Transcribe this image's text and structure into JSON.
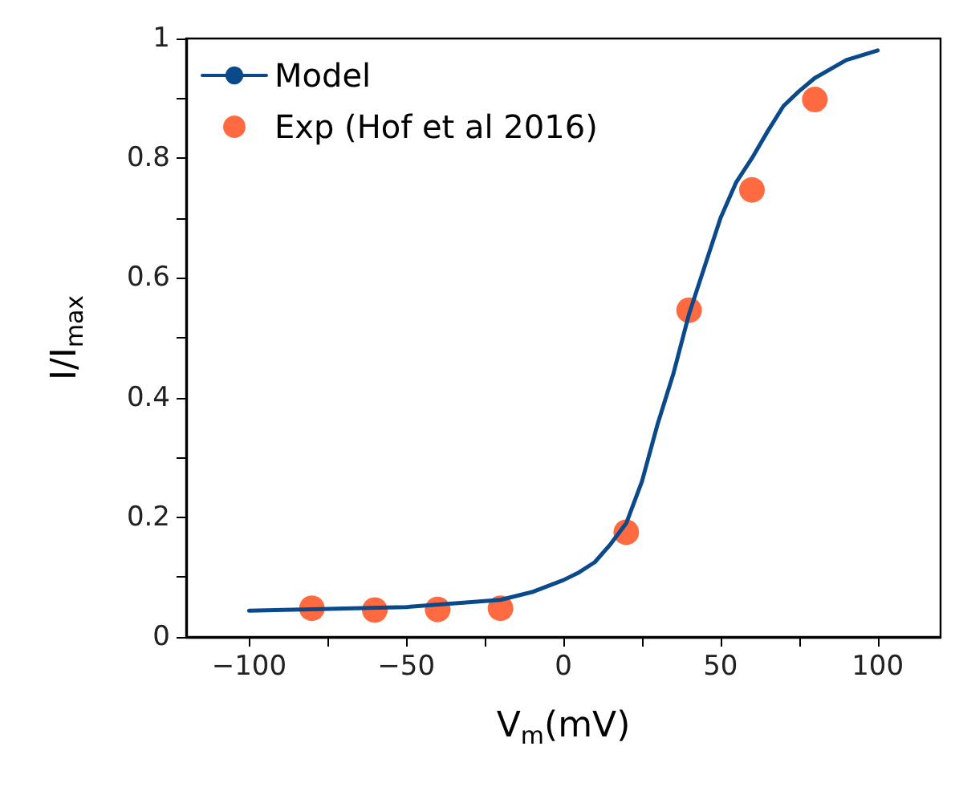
{
  "chart_data": {
    "type": "line",
    "xlabel": "V$_{m}$(mV)",
    "ylabel": "I/I$_{max}$",
    "xlim": [
      -120,
      120
    ],
    "xticks": [
      {
        "value": -100,
        "label": "−100"
      },
      {
        "value": -75,
        "label": null
      },
      {
        "value": -50,
        "label": "−50"
      },
      {
        "value": -25,
        "label": null
      },
      0,
      {
        "value": 25,
        "label": null
      },
      50,
      {
        "value": 75,
        "label": null
      },
      100
    ],
    "ylim": [
      0,
      1
    ],
    "yticks": [
      0,
      {
        "value": 0.1,
        "label": null
      },
      0.2,
      {
        "value": 0.3,
        "label": null
      },
      0.4,
      {
        "value": 0.5,
        "label": null
      },
      0.6,
      {
        "value": 0.7,
        "label": null
      },
      0.8,
      {
        "value": 0.9,
        "label": null
      },
      1
    ],
    "grid": false,
    "legend": "top left",
    "series": [
      {
        "name": "Model",
        "color": "#0a4a8a",
        "marker": "none",
        "x": [
          -100,
          -50,
          -20,
          -10,
          0,
          5,
          10,
          15,
          20,
          25,
          30,
          35,
          40,
          45,
          50,
          55,
          60,
          65,
          70,
          75,
          80,
          90,
          100
        ],
        "values": [
          0.044,
          0.05,
          0.062,
          0.075,
          0.095,
          0.108,
          0.125,
          0.155,
          0.19,
          0.26,
          0.356,
          0.44,
          0.54,
          0.62,
          0.7,
          0.76,
          0.8,
          0.845,
          0.887,
          0.912,
          0.934,
          0.964,
          0.98
        ]
      },
      {
        "name": "Exp (Hof et al 2016)",
        "type": "scatter",
        "color": "#ff4511",
        "marker": "circle",
        "x": [
          -80,
          -60,
          -40,
          -20,
          20,
          40,
          60,
          80
        ],
        "values": [
          0.048,
          0.045,
          0.046,
          0.048,
          0.175,
          0.546,
          0.747,
          0.898
        ]
      }
    ]
  }
}
